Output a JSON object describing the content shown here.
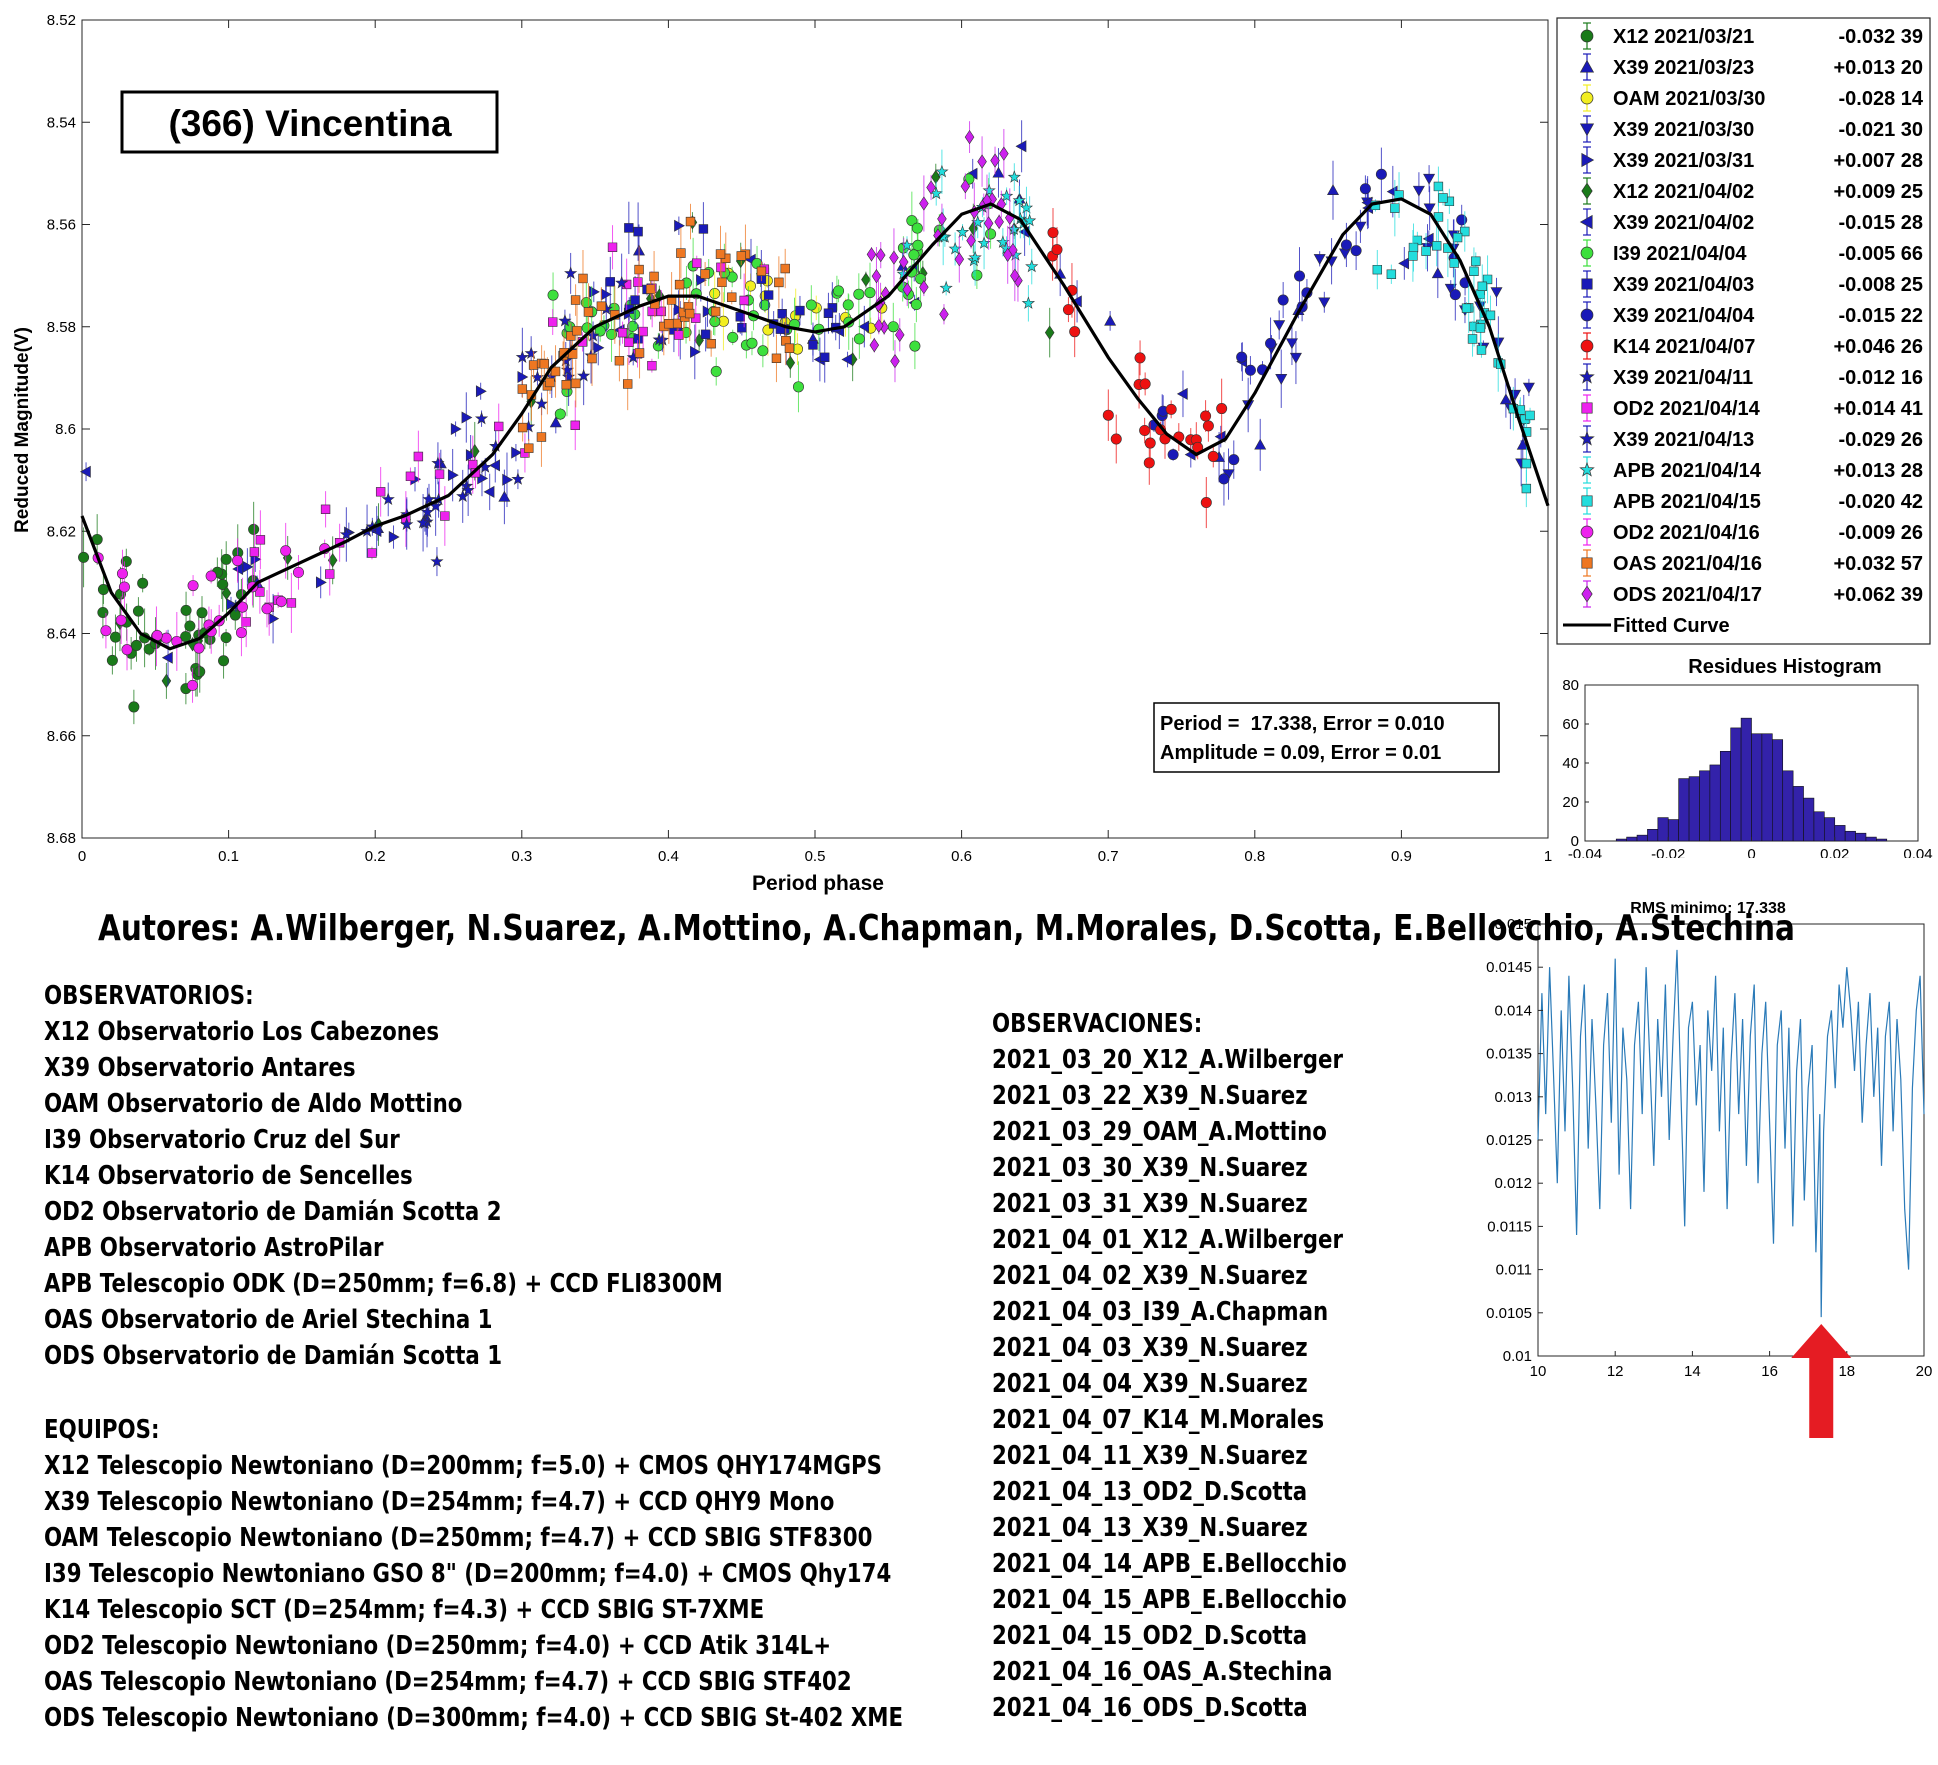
{
  "colors": {
    "X12": "#1a7a1a",
    "X39": "#1a1ab8",
    "OAM": "#f2ee20",
    "I39": "#3de03d",
    "K14": "#ee1111",
    "OD2": "#ee22ee",
    "APB": "#22dddd",
    "OAS": "#ee7722",
    "ODS": "#cc22ee",
    "curve": "#000000",
    "hist": "#3322aa",
    "rms": "#2a7ab8",
    "arrow": "#e51c23"
  },
  "chart_data": [
    {
      "type": "scatter",
      "title": "(366) Vincentina",
      "xlabel": "Period phase",
      "ylabel": "Reduced Magnitude(V)",
      "xlim": [
        0,
        1
      ],
      "ylim": [
        8.52,
        8.68
      ],
      "y_inverted": true,
      "xticks": [
        "0",
        "0.1",
        "0.2",
        "0.3",
        "0.4",
        "0.5",
        "0.6",
        "0.7",
        "0.8",
        "0.9",
        "1"
      ],
      "yticks": [
        "8.52",
        "8.54",
        "8.56",
        "8.58",
        "8.6",
        "8.62",
        "8.64",
        "8.66",
        "8.68"
      ],
      "grid": false,
      "legend_position": "outside-right",
      "legend": [
        {
          "name": "X12 2021/03/21",
          "offset": "-0.032 39",
          "marker": "circle",
          "color_key": "X12"
        },
        {
          "name": "X39 2021/03/23",
          "offset": "+0.013 20",
          "marker": "triangle-up",
          "color_key": "X39"
        },
        {
          "name": "OAM 2021/03/30",
          "offset": "-0.028 14",
          "marker": "circle",
          "color_key": "OAM"
        },
        {
          "name": "X39 2021/03/30",
          "offset": "-0.021 30",
          "marker": "triangle-down",
          "color_key": "X39"
        },
        {
          "name": "X39 2021/03/31",
          "offset": "+0.007 28",
          "marker": "triangle-right",
          "color_key": "X39"
        },
        {
          "name": "X12 2021/04/02",
          "offset": "+0.009 25",
          "marker": "diamond",
          "color_key": "X12"
        },
        {
          "name": "X39 2021/04/02",
          "offset": "-0.015 28",
          "marker": "triangle-left",
          "color_key": "X39"
        },
        {
          "name": "I39 2021/04/04",
          "offset": "-0.005 66",
          "marker": "circle",
          "color_key": "I39"
        },
        {
          "name": "X39 2021/04/03",
          "offset": "-0.008 25",
          "marker": "square",
          "color_key": "X39"
        },
        {
          "name": "X39 2021/04/04",
          "offset": "-0.015 22",
          "marker": "circle",
          "color_key": "X39"
        },
        {
          "name": "K14 2021/04/07",
          "offset": "+0.046 26",
          "marker": "circle",
          "color_key": "K14"
        },
        {
          "name": "X39 2021/04/11",
          "offset": "-0.012 16",
          "marker": "star",
          "color_key": "X39"
        },
        {
          "name": "OD2 2021/04/14",
          "offset": "+0.014 41",
          "marker": "square",
          "color_key": "OD2"
        },
        {
          "name": "X39 2021/04/13",
          "offset": "-0.029 26",
          "marker": "star",
          "color_key": "X39"
        },
        {
          "name": "APB 2021/04/14",
          "offset": "+0.013 28",
          "marker": "star",
          "color_key": "APB"
        },
        {
          "name": "APB 2021/04/15",
          "offset": "-0.020 42",
          "marker": "square",
          "color_key": "APB"
        },
        {
          "name": "OD2 2021/04/16",
          "offset": "-0.009 26",
          "marker": "circle",
          "color_key": "OD2"
        },
        {
          "name": "OAS 2021/04/16",
          "offset": "+0.032 57",
          "marker": "square",
          "color_key": "OAS"
        },
        {
          "name": "ODS 2021/04/17",
          "offset": "+0.062 39",
          "marker": "diamond",
          "color_key": "ODS"
        },
        {
          "name": "Fitted Curve",
          "offset": "",
          "marker": "line",
          "color_key": "curve"
        }
      ],
      "fitted_curve": {
        "x": [
          0,
          0.02,
          0.04,
          0.06,
          0.08,
          0.1,
          0.12,
          0.15,
          0.18,
          0.2,
          0.22,
          0.25,
          0.28,
          0.3,
          0.32,
          0.35,
          0.38,
          0.4,
          0.42,
          0.45,
          0.48,
          0.5,
          0.52,
          0.55,
          0.58,
          0.6,
          0.62,
          0.64,
          0.67,
          0.7,
          0.72,
          0.74,
          0.76,
          0.78,
          0.8,
          0.83,
          0.86,
          0.88,
          0.9,
          0.92,
          0.94,
          0.96,
          0.98,
          1.0
        ],
        "y": [
          8.617,
          8.632,
          8.64,
          8.643,
          8.641,
          8.636,
          8.63,
          8.626,
          8.622,
          8.619,
          8.617,
          8.613,
          8.605,
          8.597,
          8.588,
          8.58,
          8.576,
          8.574,
          8.574,
          8.577,
          8.58,
          8.581,
          8.58,
          8.574,
          8.564,
          8.558,
          8.556,
          8.559,
          8.572,
          8.586,
          8.594,
          8.601,
          8.605,
          8.602,
          8.593,
          8.577,
          8.562,
          8.556,
          8.555,
          8.558,
          8.567,
          8.58,
          8.598,
          8.615
        ]
      },
      "fit_box": {
        "period_line": "Period =  17.338, Error = 0.010",
        "amplitude_line": "Amplitude = 0.09, Error = 0.01"
      }
    },
    {
      "type": "bar",
      "title": "Residues Histogram",
      "xlim": [
        -0.04,
        0.04
      ],
      "ylim": [
        0,
        80
      ],
      "xticks": [
        "-0.04",
        "-0.02",
        "0",
        "0.02",
        "0.04"
      ],
      "yticks": [
        "0",
        "20",
        "40",
        "60",
        "80"
      ],
      "bin_width": 0.0025,
      "bin_centers": [
        -0.03125,
        -0.02875,
        -0.02625,
        -0.02375,
        -0.02125,
        -0.01875,
        -0.01625,
        -0.01375,
        -0.01125,
        -0.00875,
        -0.00625,
        -0.00375,
        -0.00125,
        0.00125,
        0.00375,
        0.00625,
        0.00875,
        0.01125,
        0.01375,
        0.01625,
        0.01875,
        0.02125,
        0.02375,
        0.02625,
        0.02875,
        0.03125
      ],
      "values": [
        1,
        2,
        3,
        6,
        12,
        11,
        32,
        33,
        36,
        39,
        46,
        58,
        63,
        55,
        55,
        52,
        36,
        28,
        22,
        15,
        12,
        8,
        5,
        4,
        2,
        1
      ]
    },
    {
      "type": "line",
      "title": "RMS minimo: 17.338",
      "xlim": [
        10,
        20
      ],
      "ylim": [
        0.01,
        0.015
      ],
      "xticks": [
        "10",
        "12",
        "14",
        "16",
        "18",
        "20"
      ],
      "yticks": [
        "0.01",
        "0.0105",
        "0.011",
        "0.0115",
        "0.012",
        "0.0125",
        "0.013",
        "0.0135",
        "0.014",
        "0.0145",
        "0.015"
      ],
      "minimum_marker": 17.338,
      "x": [
        10.0,
        10.1,
        10.2,
        10.3,
        10.4,
        10.5,
        10.6,
        10.7,
        10.8,
        10.9,
        11.0,
        11.1,
        11.2,
        11.3,
        11.4,
        11.5,
        11.6,
        11.7,
        11.8,
        11.9,
        12.0,
        12.1,
        12.2,
        12.3,
        12.4,
        12.5,
        12.6,
        12.7,
        12.8,
        12.9,
        13.0,
        13.1,
        13.2,
        13.3,
        13.4,
        13.5,
        13.6,
        13.7,
        13.8,
        13.9,
        14.0,
        14.1,
        14.2,
        14.3,
        14.4,
        14.5,
        14.6,
        14.7,
        14.8,
        14.9,
        15.0,
        15.1,
        15.2,
        15.3,
        15.4,
        15.5,
        15.6,
        15.7,
        15.8,
        15.9,
        16.0,
        16.1,
        16.2,
        16.3,
        16.4,
        16.5,
        16.6,
        16.7,
        16.8,
        16.9,
        17.0,
        17.1,
        17.2,
        17.3,
        17.338,
        17.4,
        17.5,
        17.6,
        17.7,
        17.8,
        17.9,
        18.0,
        18.1,
        18.2,
        18.3,
        18.4,
        18.5,
        18.6,
        18.7,
        18.8,
        18.9,
        19.0,
        19.1,
        19.2,
        19.3,
        19.4,
        19.5,
        19.6,
        19.7,
        19.8,
        19.9,
        20.0
      ],
      "y": [
        0.0125,
        0.0142,
        0.0128,
        0.0145,
        0.0133,
        0.012,
        0.014,
        0.0126,
        0.0144,
        0.0131,
        0.0114,
        0.0137,
        0.0143,
        0.0124,
        0.0139,
        0.0129,
        0.0117,
        0.0136,
        0.0142,
        0.0127,
        0.0146,
        0.0121,
        0.0138,
        0.0132,
        0.0117,
        0.0136,
        0.0141,
        0.0128,
        0.0145,
        0.0134,
        0.0122,
        0.0139,
        0.013,
        0.0143,
        0.0125,
        0.0137,
        0.0147,
        0.0131,
        0.0115,
        0.0138,
        0.0141,
        0.0129,
        0.0136,
        0.0119,
        0.014,
        0.0133,
        0.0144,
        0.0126,
        0.0138,
        0.0117,
        0.0134,
        0.0142,
        0.0128,
        0.0139,
        0.0122,
        0.0137,
        0.0143,
        0.012,
        0.0135,
        0.0141,
        0.0127,
        0.0113,
        0.0136,
        0.014,
        0.0124,
        0.0138,
        0.0115,
        0.0133,
        0.0139,
        0.0118,
        0.0131,
        0.0136,
        0.0112,
        0.0128,
        0.01045,
        0.0126,
        0.0137,
        0.014,
        0.0131,
        0.0143,
        0.0138,
        0.0145,
        0.014,
        0.0133,
        0.0141,
        0.0127,
        0.0136,
        0.0142,
        0.013,
        0.0138,
        0.0122,
        0.0137,
        0.0141,
        0.0126,
        0.0139,
        0.0132,
        0.0117,
        0.011,
        0.0131,
        0.014,
        0.0144,
        0.0128
      ]
    }
  ],
  "authors": "Autores: A.Wilberger, N.Suarez, A.Mottino, A.Chapman, M.Morales, D.Scotta, E.Bellocchio, A.Stechina",
  "observatorios": {
    "heading": "OBSERVATORIOS:",
    "items": [
      "X12 Observatorio Los Cabezones",
      "X39 Observatorio Antares",
      "OAM Observatorio de Aldo Mottino",
      "I39 Observatorio Cruz del Sur",
      "K14 Observatorio de Sencelles",
      "OD2 Observatorio de Damián Scotta 2",
      "APB Observatorio AstroPilar",
      "APB Telescopio ODK (D=250mm; f=6.8) + CCD FLI8300M",
      "OAS Observatorio de Ariel Stechina 1",
      "ODS Observatorio de Damián Scotta 1"
    ]
  },
  "equipos": {
    "heading": "EQUIPOS:",
    "items": [
      "X12 Telescopio Newtoniano (D=200mm; f=5.0) + CMOS QHY174MGPS",
      "X39 Telescopio Newtoniano (D=254mm; f=4.7) + CCD QHY9 Mono",
      "OAM Telescopio Newtoniano (D=250mm; f=4.7) + CCD SBIG STF8300",
      "I39 Telescopio Newtoniano GSO 8\" (D=200mm; f=4.0) + CMOS Qhy174",
      "K14 Telescopio SCT (D=254mm; f=4.3) + CCD SBIG ST-7XME",
      "OD2 Telescopio Newtoniano (D=250mm; f=4.0) + CCD Atik 314L+",
      "OAS Telescopio Newtoniano (D=254mm; f=4.7) + CCD SBIG STF402",
      "ODS Telescopio Newtoniano (D=300mm; f=4.0) + CCD SBIG St-402 XME"
    ]
  },
  "observaciones": {
    "heading": "OBSERVACIONES:",
    "items": [
      "2021_03_20_X12_A.Wilberger",
      "2021_03_22_X39_N.Suarez",
      "2021_03_29_OAM_A.Mottino",
      "2021_03_30_X39_N.Suarez",
      "2021_03_31_X39_N.Suarez",
      "2021_04_01_X12_A.Wilberger",
      "2021_04_02_X39_N.Suarez",
      "2021_04_03_I39_A.Chapman",
      "2021_04_03_X39_N.Suarez",
      "2021_04_04_X39_N.Suarez",
      "2021_04_07_K14_M.Morales",
      "2021_04_11_X39_N.Suarez",
      "2021_04_13_OD2_D.Scotta",
      "2021_04_13_X39_N.Suarez",
      "2021_04_14_APB_E.Bellocchio",
      "2021_04_15_APB_E.Bellocchio",
      "2021_04_15_OD2_D.Scotta",
      "2021_04_16_OAS_A.Stechina",
      "2021_04_16_ODS_D.Scotta"
    ]
  }
}
